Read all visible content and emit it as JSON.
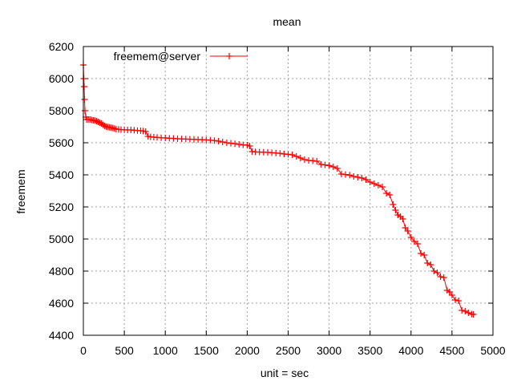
{
  "chart_data": {
    "type": "line",
    "title": "mean",
    "xlabel": "unit = sec",
    "ylabel": "freemem",
    "xlim": [
      0,
      5000
    ],
    "ylim": [
      4400,
      6200
    ],
    "x_ticks": [
      0,
      500,
      1000,
      1500,
      2000,
      2500,
      3000,
      3500,
      4000,
      4500,
      5000
    ],
    "y_ticks": [
      4400,
      4600,
      4800,
      5000,
      5200,
      5400,
      5600,
      5800,
      6000,
      6200
    ],
    "grid": true,
    "grid_style": "dotted",
    "legend_position": "top-left",
    "series": [
      {
        "name": "freemem@server",
        "color": "#ff0000",
        "marker": "plus",
        "points": [
          [
            0,
            6085
          ],
          [
            5,
            6000
          ],
          [
            10,
            5950
          ],
          [
            15,
            5870
          ],
          [
            20,
            5800
          ],
          [
            30,
            5760
          ],
          [
            40,
            5745
          ],
          [
            60,
            5745
          ],
          [
            80,
            5745
          ],
          [
            100,
            5742
          ],
          [
            120,
            5740
          ],
          [
            140,
            5738
          ],
          [
            160,
            5735
          ],
          [
            180,
            5730
          ],
          [
            200,
            5725
          ],
          [
            220,
            5720
          ],
          [
            240,
            5712
          ],
          [
            260,
            5705
          ],
          [
            280,
            5700
          ],
          [
            300,
            5698
          ],
          [
            320,
            5696
          ],
          [
            340,
            5694
          ],
          [
            360,
            5692
          ],
          [
            380,
            5688
          ],
          [
            400,
            5685
          ],
          [
            430,
            5683
          ],
          [
            460,
            5682
          ],
          [
            500,
            5681
          ],
          [
            540,
            5680
          ],
          [
            580,
            5680
          ],
          [
            620,
            5678
          ],
          [
            660,
            5676
          ],
          [
            700,
            5675
          ],
          [
            730,
            5673
          ],
          [
            760,
            5670
          ],
          [
            790,
            5640
          ],
          [
            820,
            5637
          ],
          [
            860,
            5635
          ],
          [
            900,
            5633
          ],
          [
            950,
            5631
          ],
          [
            1000,
            5630
          ],
          [
            1050,
            5628
          ],
          [
            1100,
            5627
          ],
          [
            1150,
            5625
          ],
          [
            1200,
            5624
          ],
          [
            1250,
            5623
          ],
          [
            1300,
            5622
          ],
          [
            1350,
            5621
          ],
          [
            1400,
            5620
          ],
          [
            1450,
            5619
          ],
          [
            1500,
            5618
          ],
          [
            1550,
            5616
          ],
          [
            1600,
            5614
          ],
          [
            1650,
            5610
          ],
          [
            1700,
            5605
          ],
          [
            1750,
            5600
          ],
          [
            1800,
            5597
          ],
          [
            1850,
            5594
          ],
          [
            1900,
            5590
          ],
          [
            1950,
            5587
          ],
          [
            2000,
            5585
          ],
          [
            2030,
            5580
          ],
          [
            2060,
            5545
          ],
          [
            2100,
            5543
          ],
          [
            2150,
            5542
          ],
          [
            2200,
            5541
          ],
          [
            2250,
            5540
          ],
          [
            2300,
            5538
          ],
          [
            2350,
            5536
          ],
          [
            2400,
            5534
          ],
          [
            2450,
            5530
          ],
          [
            2500,
            5528
          ],
          [
            2550,
            5525
          ],
          [
            2600,
            5515
          ],
          [
            2650,
            5505
          ],
          [
            2700,
            5495
          ],
          [
            2750,
            5490
          ],
          [
            2800,
            5488
          ],
          [
            2850,
            5485
          ],
          [
            2900,
            5465
          ],
          [
            2950,
            5462
          ],
          [
            3000,
            5458
          ],
          [
            3050,
            5450
          ],
          [
            3100,
            5440
          ],
          [
            3150,
            5405
          ],
          [
            3200,
            5402
          ],
          [
            3250,
            5398
          ],
          [
            3300,
            5390
          ],
          [
            3350,
            5385
          ],
          [
            3400,
            5380
          ],
          [
            3450,
            5370
          ],
          [
            3500,
            5355
          ],
          [
            3550,
            5345
          ],
          [
            3600,
            5335
          ],
          [
            3650,
            5325
          ],
          [
            3700,
            5285
          ],
          [
            3740,
            5275
          ],
          [
            3780,
            5215
          ],
          [
            3810,
            5180
          ],
          [
            3840,
            5150
          ],
          [
            3870,
            5140
          ],
          [
            3900,
            5125
          ],
          [
            3930,
            5070
          ],
          [
            3960,
            5050
          ],
          [
            4000,
            5010
          ],
          [
            4040,
            4985
          ],
          [
            4080,
            4970
          ],
          [
            4120,
            4910
          ],
          [
            4160,
            4900
          ],
          [
            4200,
            4850
          ],
          [
            4240,
            4840
          ],
          [
            4280,
            4800
          ],
          [
            4320,
            4790
          ],
          [
            4360,
            4765
          ],
          [
            4400,
            4760
          ],
          [
            4440,
            4680
          ],
          [
            4470,
            4670
          ],
          [
            4500,
            4650
          ],
          [
            4540,
            4620
          ],
          [
            4580,
            4615
          ],
          [
            4620,
            4555
          ],
          [
            4660,
            4550
          ],
          [
            4700,
            4540
          ],
          [
            4740,
            4532
          ],
          [
            4760,
            4530
          ]
        ]
      }
    ]
  }
}
